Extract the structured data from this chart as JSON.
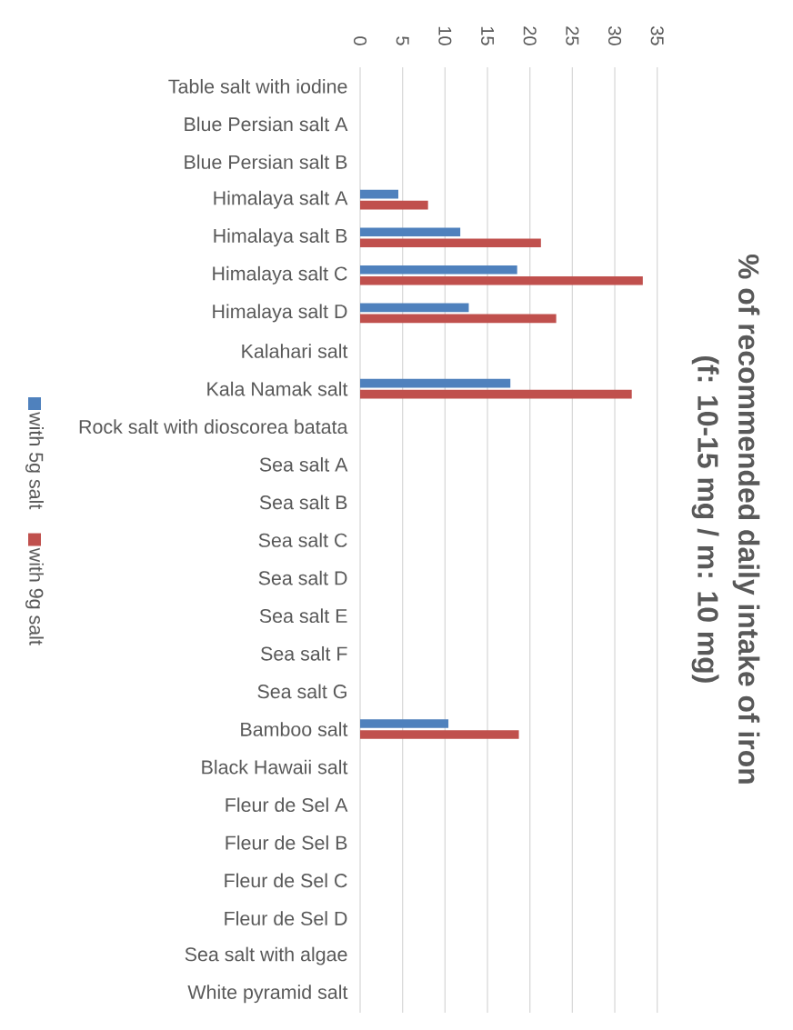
{
  "chart_data": {
    "type": "bar",
    "orientation": "horizontal",
    "title": "% of recommended daily intake of iron (f: 10-15 mg / m: 10 mg)",
    "categories": [
      "Table salt with iodine",
      "Blue Persian salt A",
      "Blue Persian salt B",
      "Himalaya salt A",
      "Himalaya salt B",
      "Himalaya salt C",
      "Himalaya salt D",
      "Kalahari salt",
      "Kala Namak salt",
      "Rock salt with dioscorea batata",
      "Sea salt A",
      "Sea salt B",
      "Sea salt C",
      "Sea salt D",
      "Sea salt E",
      "Sea salt F",
      "Sea salt G",
      "Bamboo salt",
      "Black Hawaii salt",
      "Fleur de Sel A",
      "Fleur de Sel B",
      "Fleur de Sel C",
      "Fleur de Sel D",
      "Sea salt with algae",
      "White pyramid salt"
    ],
    "series": [
      {
        "name": "with 5g salt",
        "color": "#4f81bd",
        "values": [
          null,
          null,
          null,
          4.5,
          11.8,
          18.5,
          12.8,
          null,
          17.7,
          null,
          null,
          null,
          null,
          null,
          null,
          null,
          null,
          10.4,
          null,
          null,
          null,
          null,
          null,
          null,
          null
        ]
      },
      {
        "name": "with 9g salt",
        "color": "#c0504d",
        "values": [
          null,
          null,
          null,
          8.0,
          21.3,
          33.3,
          23.1,
          null,
          32.0,
          null,
          null,
          null,
          null,
          null,
          null,
          null,
          null,
          18.7,
          null,
          null,
          null,
          null,
          null,
          null,
          null
        ]
      }
    ],
    "xlim": [
      0,
      35
    ],
    "xticks": [
      0,
      5,
      10,
      15,
      20,
      25,
      30,
      35
    ],
    "grid": "x",
    "legend": "left"
  }
}
